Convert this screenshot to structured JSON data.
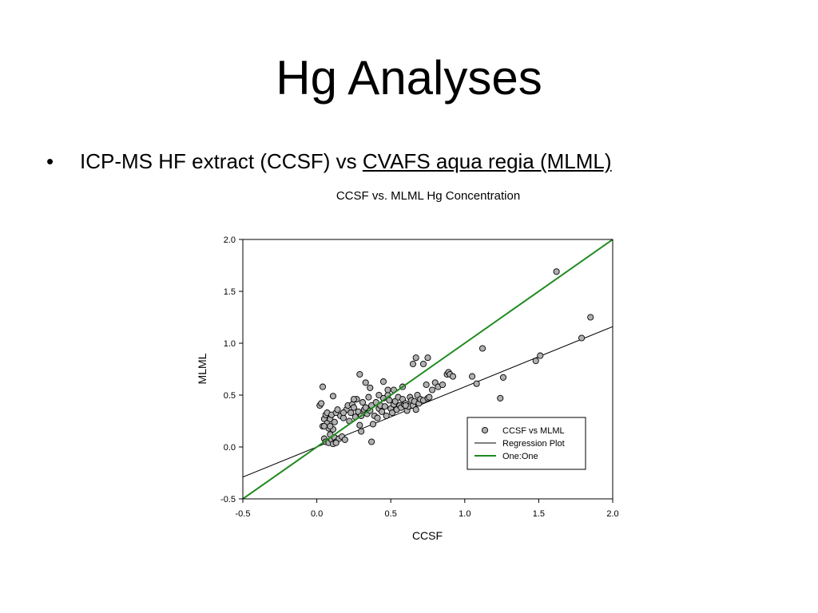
{
  "slide": {
    "title": "Hg Analyses",
    "bullet": {
      "marker": "•",
      "text": "ICP-MS HF extract (CCSF) vs ",
      "link_text": "CVAFS aqua regia (MLML)"
    }
  },
  "colors": {
    "point_fill": "#b0b0b0",
    "regression": "#000000",
    "one_to_one": "#1f8a1f"
  },
  "chart_data": {
    "type": "scatter",
    "title": "CCSF vs. MLML Hg Concentration",
    "xlabel": "CCSF",
    "ylabel": "MLML",
    "xlim": [
      -0.5,
      2.0
    ],
    "ylim": [
      -0.5,
      2.0
    ],
    "xticks": [
      -0.5,
      0.0,
      0.5,
      1.0,
      1.5,
      2.0
    ],
    "yticks": [
      -0.5,
      0.0,
      0.5,
      1.0,
      1.5,
      2.0
    ],
    "grid": false,
    "legend_position": "bottom-right",
    "series": [
      {
        "name": "CCSF vs MLML",
        "kind": "points",
        "x": [
          0.02,
          0.03,
          0.04,
          0.05,
          0.05,
          0.06,
          0.06,
          0.07,
          0.07,
          0.08,
          0.08,
          0.09,
          0.09,
          0.1,
          0.1,
          0.11,
          0.11,
          0.12,
          0.12,
          0.13,
          0.13,
          0.14,
          0.15,
          0.16,
          0.17,
          0.18,
          0.19,
          0.2,
          0.21,
          0.22,
          0.23,
          0.24,
          0.25,
          0.26,
          0.27,
          0.28,
          0.29,
          0.3,
          0.3,
          0.31,
          0.32,
          0.33,
          0.34,
          0.35,
          0.36,
          0.37,
          0.38,
          0.39,
          0.4,
          0.41,
          0.42,
          0.43,
          0.44,
          0.45,
          0.46,
          0.47,
          0.48,
          0.49,
          0.5,
          0.51,
          0.52,
          0.53,
          0.54,
          0.55,
          0.56,
          0.57,
          0.58,
          0.59,
          0.6,
          0.61,
          0.62,
          0.63,
          0.64,
          0.65,
          0.66,
          0.67,
          0.68,
          0.69,
          0.7,
          0.72,
          0.74,
          0.75,
          0.76,
          0.78,
          0.8,
          0.82,
          0.85,
          0.88,
          0.89,
          0.9,
          0.92,
          0.04,
          0.05,
          0.09,
          0.11,
          0.13,
          0.18,
          0.25,
          0.29,
          0.33,
          0.36,
          0.37,
          0.42,
          0.45,
          0.48,
          0.52,
          0.58,
          0.6,
          0.65,
          0.67,
          0.72,
          0.75,
          1.05,
          1.08,
          1.12,
          1.24,
          1.26,
          1.48,
          1.51,
          1.62,
          1.79,
          1.85
        ],
        "y": [
          0.4,
          0.42,
          0.2,
          0.08,
          0.27,
          0.31,
          0.05,
          0.23,
          0.33,
          0.04,
          0.18,
          0.12,
          0.27,
          0.07,
          0.31,
          0.03,
          0.17,
          0.09,
          0.24,
          0.33,
          0.05,
          0.36,
          0.08,
          0.3,
          0.1,
          0.28,
          0.07,
          0.36,
          0.4,
          0.25,
          0.33,
          0.41,
          0.38,
          0.29,
          0.46,
          0.34,
          0.21,
          0.3,
          0.15,
          0.43,
          0.36,
          0.38,
          0.32,
          0.48,
          0.35,
          0.4,
          0.22,
          0.3,
          0.43,
          0.28,
          0.37,
          0.4,
          0.34,
          0.47,
          0.39,
          0.3,
          0.5,
          0.45,
          0.37,
          0.33,
          0.41,
          0.44,
          0.36,
          0.48,
          0.4,
          0.38,
          0.46,
          0.41,
          0.42,
          0.35,
          0.39,
          0.48,
          0.45,
          0.4,
          0.44,
          0.36,
          0.5,
          0.42,
          0.46,
          0.45,
          0.6,
          0.47,
          0.48,
          0.55,
          0.62,
          0.58,
          0.6,
          0.7,
          0.72,
          0.7,
          0.68,
          0.58,
          0.2,
          0.2,
          0.49,
          0.04,
          0.33,
          0.46,
          0.7,
          0.62,
          0.57,
          0.05,
          0.5,
          0.63,
          0.55,
          0.55,
          0.58,
          0.4,
          0.8,
          0.86,
          0.8,
          0.86,
          0.68,
          0.61,
          0.95,
          0.47,
          0.67,
          0.83,
          0.88,
          1.69,
          1.05,
          1.25
        ]
      },
      {
        "name": "Regression Plot",
        "kind": "line",
        "x": [
          -0.5,
          2.0
        ],
        "y": [
          -0.29,
          1.16
        ]
      },
      {
        "name": "One:One",
        "kind": "line",
        "x": [
          -0.5,
          2.0
        ],
        "y": [
          -0.5,
          2.0
        ]
      }
    ]
  }
}
